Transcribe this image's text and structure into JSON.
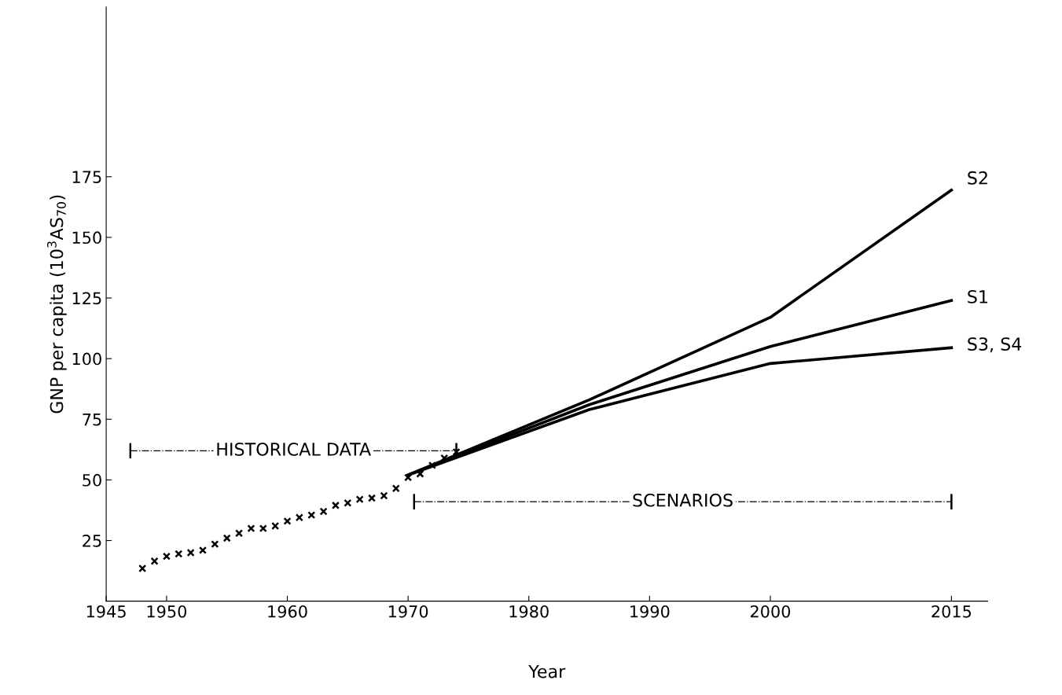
{
  "chart_data": {
    "type": "line",
    "xlabel": "Year",
    "ylabel": "GNP per capita (10$^{3}$AS$_{70}$)",
    "xlim": [
      1945,
      2018
    ],
    "ylim": [
      0,
      245
    ],
    "xticks": [
      1945,
      1950,
      1960,
      1970,
      1980,
      1990,
      2000,
      2015
    ],
    "yticks": [
      25,
      50,
      75,
      100,
      125,
      150,
      175
    ],
    "grid": false,
    "legend": false,
    "line_style": "solid",
    "series": [
      {
        "type": "scatter",
        "marker": "cross",
        "color": "#000000",
        "x": [
          1948,
          1949,
          1950,
          1951,
          1952,
          1953,
          1954,
          1955,
          1956,
          1957,
          1958,
          1959,
          1960,
          1961,
          1962,
          1963,
          1964,
          1965,
          1966,
          1967,
          1968,
          1969,
          1970,
          1971,
          1972,
          1973,
          1974
        ],
        "values": [
          13.5,
          16.5,
          18.5,
          19.5,
          20,
          21,
          23.5,
          26,
          28,
          30,
          30,
          31,
          33,
          34.5,
          35.5,
          37,
          39.5,
          40.5,
          42,
          42.5,
          43.5,
          46.5,
          51,
          52.5,
          56,
          59,
          61.5
        ]
      },
      {
        "name": "S2",
        "color": "#000000",
        "x": [
          1970,
          1985,
          2000,
          2015
        ],
        "values": [
          52,
          83,
          117,
          169.5
        ]
      },
      {
        "name": "S1",
        "color": "#000000",
        "x": [
          1970,
          1985,
          2000,
          2015
        ],
        "values": [
          52,
          81,
          105,
          124
        ]
      },
      {
        "name": "S3, S4",
        "color": "#000000",
        "x": [
          1970,
          1985,
          2000,
          2015
        ],
        "values": [
          52,
          79,
          98,
          104.5
        ]
      },
      {
        "color": "#000000",
        "line_style": "dashed",
        "x": [
          1947,
          1974
        ],
        "values": [
          62,
          62
        ]
      },
      {
        "color": "#000000",
        "line_style": "dashed",
        "x": [
          1970.5,
          2015
        ],
        "values": [
          41,
          41
        ]
      }
    ],
    "annotations": [
      {
        "text": "HISTORICAL DATA",
        "x": 1960.5,
        "y": 62
      },
      {
        "text": "SCENARIOS",
        "x": 1992.75,
        "y": 41
      }
    ]
  }
}
